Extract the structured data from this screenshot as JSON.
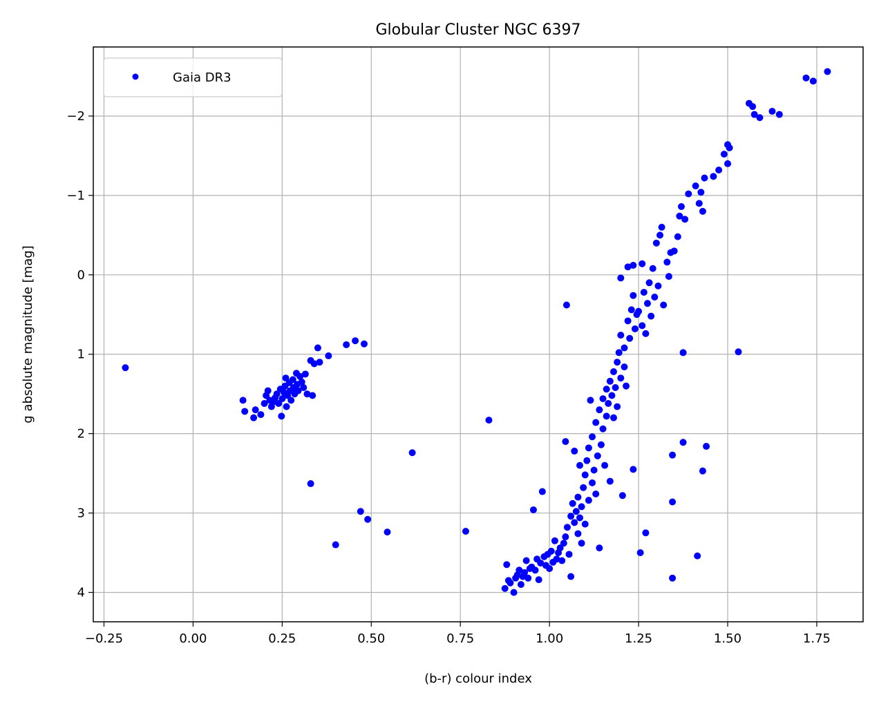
{
  "chart_data": {
    "type": "scatter",
    "title": "Globular Cluster NGC 6397",
    "xlabel": "(b-r) colour index",
    "ylabel": "g absolute magnitude [mag]",
    "xlim": [
      -0.28,
      1.88
    ],
    "ylim": [
      4.37,
      -2.87
    ],
    "y_inverted": true,
    "grid": true,
    "legend_position": "upper-left",
    "x_ticks": [
      "−0.25",
      "0.00",
      "0.25",
      "0.50",
      "0.75",
      "1.00",
      "1.25",
      "1.50",
      "1.75"
    ],
    "x_tick_values": [
      -0.25,
      0.0,
      0.25,
      0.5,
      0.75,
      1.0,
      1.25,
      1.5,
      1.75
    ],
    "y_ticks": [
      "−2",
      "−1",
      "0",
      "1",
      "2",
      "3",
      "4"
    ],
    "y_tick_values": [
      -2,
      -1,
      0,
      1,
      2,
      3,
      4
    ],
    "series": [
      {
        "name": "Gaia DR3",
        "color": "#0000ff",
        "marker": "circle",
        "points": [
          [
            -0.19,
            1.17
          ],
          [
            0.14,
            1.58
          ],
          [
            0.145,
            1.72
          ],
          [
            0.17,
            1.8
          ],
          [
            0.175,
            1.7
          ],
          [
            0.19,
            1.76
          ],
          [
            0.2,
            1.62
          ],
          [
            0.205,
            1.52
          ],
          [
            0.21,
            1.46
          ],
          [
            0.215,
            1.58
          ],
          [
            0.22,
            1.66
          ],
          [
            0.225,
            1.6
          ],
          [
            0.23,
            1.55
          ],
          [
            0.235,
            1.5
          ],
          [
            0.24,
            1.62
          ],
          [
            0.245,
            1.44
          ],
          [
            0.248,
            1.78
          ],
          [
            0.25,
            1.56
          ],
          [
            0.255,
            1.48
          ],
          [
            0.258,
            1.4
          ],
          [
            0.26,
            1.3
          ],
          [
            0.262,
            1.66
          ],
          [
            0.265,
            1.52
          ],
          [
            0.27,
            1.36
          ],
          [
            0.272,
            1.46
          ],
          [
            0.275,
            1.58
          ],
          [
            0.28,
            1.32
          ],
          [
            0.282,
            1.42
          ],
          [
            0.285,
            1.5
          ],
          [
            0.29,
            1.24
          ],
          [
            0.292,
            1.38
          ],
          [
            0.295,
            1.46
          ],
          [
            0.3,
            1.28
          ],
          [
            0.305,
            1.35
          ],
          [
            0.31,
            1.42
          ],
          [
            0.315,
            1.25
          ],
          [
            0.32,
            1.5
          ],
          [
            0.33,
            1.08
          ],
          [
            0.335,
            1.52
          ],
          [
            0.34,
            1.12
          ],
          [
            0.35,
            0.92
          ],
          [
            0.355,
            1.1
          ],
          [
            0.38,
            1.02
          ],
          [
            0.43,
            0.88
          ],
          [
            0.455,
            0.83
          ],
          [
            0.48,
            0.87
          ],
          [
            0.33,
            2.63
          ],
          [
            0.4,
            3.4
          ],
          [
            0.47,
            2.98
          ],
          [
            0.49,
            3.08
          ],
          [
            0.545,
            3.24
          ],
          [
            0.615,
            2.24
          ],
          [
            0.765,
            3.23
          ],
          [
            0.83,
            1.83
          ],
          [
            0.875,
            3.95
          ],
          [
            0.88,
            3.65
          ],
          [
            0.885,
            3.85
          ],
          [
            0.89,
            3.88
          ],
          [
            0.9,
            4.0
          ],
          [
            0.905,
            3.82
          ],
          [
            0.91,
            3.78
          ],
          [
            0.915,
            3.72
          ],
          [
            0.92,
            3.9
          ],
          [
            0.925,
            3.8
          ],
          [
            0.93,
            3.75
          ],
          [
            0.935,
            3.6
          ],
          [
            0.94,
            3.82
          ],
          [
            0.945,
            3.7
          ],
          [
            0.95,
            3.68
          ],
          [
            0.955,
            2.96
          ],
          [
            0.96,
            3.72
          ],
          [
            0.965,
            3.58
          ],
          [
            0.97,
            3.84
          ],
          [
            0.975,
            3.63
          ],
          [
            0.98,
            2.73
          ],
          [
            0.985,
            3.55
          ],
          [
            0.99,
            3.66
          ],
          [
            0.995,
            3.52
          ],
          [
            1.0,
            3.7
          ],
          [
            1.005,
            3.48
          ],
          [
            1.01,
            3.62
          ],
          [
            1.015,
            3.35
          ],
          [
            1.02,
            3.58
          ],
          [
            1.025,
            3.5
          ],
          [
            1.03,
            3.44
          ],
          [
            1.035,
            3.6
          ],
          [
            1.04,
            3.38
          ],
          [
            1.045,
            3.3
          ],
          [
            1.045,
            2.1
          ],
          [
            1.048,
            0.38
          ],
          [
            1.05,
            3.18
          ],
          [
            1.055,
            3.52
          ],
          [
            1.06,
            3.04
          ],
          [
            1.06,
            3.8
          ],
          [
            1.065,
            2.88
          ],
          [
            1.07,
            3.12
          ],
          [
            1.07,
            2.22
          ],
          [
            1.075,
            2.98
          ],
          [
            1.08,
            3.26
          ],
          [
            1.08,
            2.8
          ],
          [
            1.085,
            3.06
          ],
          [
            1.085,
            2.4
          ],
          [
            1.09,
            2.92
          ],
          [
            1.09,
            3.38
          ],
          [
            1.095,
            2.68
          ],
          [
            1.1,
            3.14
          ],
          [
            1.1,
            2.52
          ],
          [
            1.105,
            2.34
          ],
          [
            1.11,
            2.84
          ],
          [
            1.11,
            2.18
          ],
          [
            1.115,
            1.58
          ],
          [
            1.12,
            2.62
          ],
          [
            1.12,
            2.04
          ],
          [
            1.125,
            2.46
          ],
          [
            1.13,
            1.86
          ],
          [
            1.13,
            2.76
          ],
          [
            1.135,
            2.28
          ],
          [
            1.14,
            1.7
          ],
          [
            1.14,
            3.44
          ],
          [
            1.145,
            2.14
          ],
          [
            1.15,
            1.56
          ],
          [
            1.15,
            1.94
          ],
          [
            1.155,
            2.4
          ],
          [
            1.16,
            1.78
          ],
          [
            1.16,
            1.44
          ],
          [
            1.165,
            1.62
          ],
          [
            1.17,
            1.34
          ],
          [
            1.17,
            2.6
          ],
          [
            1.175,
            1.52
          ],
          [
            1.18,
            1.22
          ],
          [
            1.18,
            1.8
          ],
          [
            1.185,
            1.42
          ],
          [
            1.19,
            1.1
          ],
          [
            1.19,
            1.66
          ],
          [
            1.195,
            0.98
          ],
          [
            1.2,
            1.3
          ],
          [
            1.2,
            0.76
          ],
          [
            1.205,
            2.78
          ],
          [
            1.21,
            1.16
          ],
          [
            1.21,
            0.92
          ],
          [
            1.215,
            1.4
          ],
          [
            1.22,
            0.58
          ],
          [
            1.225,
            0.8
          ],
          [
            1.23,
            0.44
          ],
          [
            1.235,
            0.26
          ],
          [
            1.235,
            2.45
          ],
          [
            1.24,
            0.68
          ],
          [
            1.245,
            0.5
          ],
          [
            1.25,
            0.46
          ],
          [
            1.255,
            3.5
          ],
          [
            1.26,
            0.64
          ],
          [
            1.265,
            0.22
          ],
          [
            1.27,
            0.74
          ],
          [
            1.27,
            3.25
          ],
          [
            1.275,
            0.36
          ],
          [
            1.28,
            0.1
          ],
          [
            1.285,
            0.52
          ],
          [
            1.29,
            -0.08
          ],
          [
            1.295,
            0.28
          ],
          [
            1.3,
            -0.4
          ],
          [
            1.305,
            0.14
          ],
          [
            1.31,
            -0.5
          ],
          [
            1.315,
            -0.6
          ],
          [
            1.32,
            0.38
          ],
          [
            1.33,
            -0.16
          ],
          [
            1.335,
            0.02
          ],
          [
            1.34,
            -0.28
          ],
          [
            1.345,
            2.27
          ],
          [
            1.345,
            2.86
          ],
          [
            1.345,
            3.82
          ],
          [
            1.35,
            -0.3
          ],
          [
            1.36,
            -0.48
          ],
          [
            1.365,
            -0.74
          ],
          [
            1.37,
            -0.86
          ],
          [
            1.375,
            0.98
          ],
          [
            1.375,
            2.11
          ],
          [
            1.38,
            -0.7
          ],
          [
            1.39,
            -1.02
          ],
          [
            1.41,
            -1.12
          ],
          [
            1.415,
            3.54
          ],
          [
            1.42,
            -0.9
          ],
          [
            1.425,
            -1.04
          ],
          [
            1.43,
            -0.8
          ],
          [
            1.43,
            2.47
          ],
          [
            1.435,
            -1.22
          ],
          [
            1.44,
            2.16
          ],
          [
            1.46,
            -1.24
          ],
          [
            1.475,
            -1.32
          ],
          [
            1.49,
            -1.52
          ],
          [
            1.5,
            -1.4
          ],
          [
            1.505,
            -1.6
          ],
          [
            1.5,
            -1.64
          ],
          [
            1.53,
            0.97
          ],
          [
            1.56,
            -2.16
          ],
          [
            1.57,
            -2.12
          ],
          [
            1.575,
            -2.02
          ],
          [
            1.59,
            -1.98
          ],
          [
            1.625,
            -2.06
          ],
          [
            1.645,
            -2.02
          ],
          [
            1.72,
            -2.48
          ],
          [
            1.74,
            -2.44
          ],
          [
            1.78,
            -2.56
          ],
          [
            1.2,
            0.04
          ],
          [
            1.22,
            -0.1
          ],
          [
            1.235,
            -0.12
          ],
          [
            1.26,
            -0.14
          ]
        ]
      }
    ]
  }
}
